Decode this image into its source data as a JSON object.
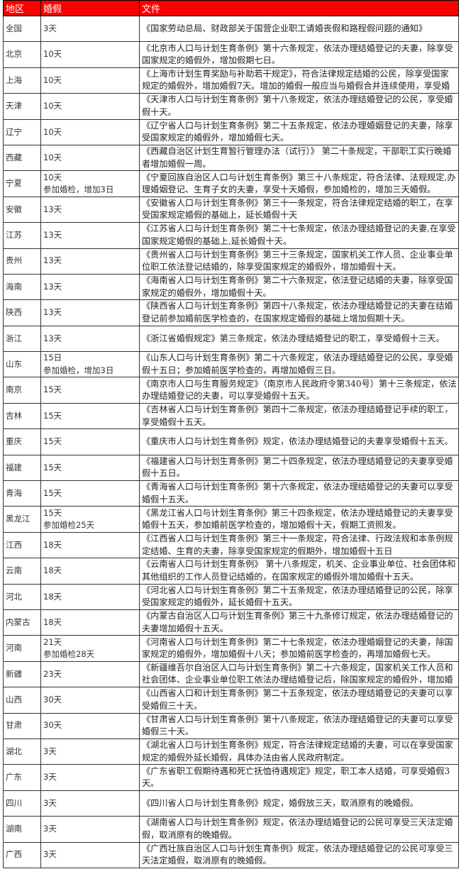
{
  "header": {
    "region": "地区",
    "leave": "婚假",
    "document": "文件",
    "bg_color": "#ff0000"
  },
  "rows": [
    {
      "region": "全国",
      "leave": "3天",
      "document": "《国家劳动总局、财政部关于国营企业职工请婚丧假和路程假问题的通知》"
    },
    {
      "region": "北京",
      "leave": "10天",
      "document": "《北京市人口与计划生育条例》第十六条规定，依法办理结婚登记的夫妻，除享受国家规定的婚假外，增加假期七日。"
    },
    {
      "region": "上海",
      "leave": "10天",
      "document": "《上海市计划生育奖励与补助若干规定》，符合法律规定结婚的公民，除享受国家规定的婚假外，增加婚假7天。增加的婚假一般应当与婚假合并连续使用，享受婚"
    },
    {
      "region": "天津",
      "leave": "10天",
      "document": "《天津市人口与计划生育条例》第十八条规定，依法办理结婚登记的公民，享受婚假十天。"
    },
    {
      "region": "辽宁",
      "leave": "10天",
      "document": "《辽宁省人口与计划生育条例》第二十五条规定，依法办理婚姻登记的夫妻，除享受国家规定的婚假外，增加婚假七天。"
    },
    {
      "region": "西藏",
      "leave": "10天",
      "document": "《西藏自治区计划生育暂行管理办法（试行）》 第二十条规定，干部职工实行晚婚者增加婚假一周。"
    },
    {
      "region": "宁夏",
      "leave": "10天",
      "leave_note": "参加婚检，增加3日",
      "document": "《宁夏回族自治区人口与计划生育条例》第三十八条规定，符合法律、法规规定,办理婚姻登记、生育子女的夫妻，享受十天婚假，参加婚检的，增加三天婚假。"
    },
    {
      "region": "安徽",
      "leave": "13天",
      "document": "《安徽省人口与计划生育条例》第三十一条规定，符合法律规定结婚的职工，在享受国家规定婚假的基础上，延长婚假十天"
    },
    {
      "region": "江苏",
      "leave": "13天",
      "document": "《江苏省人口与计划生育条例》第二十七条规定，依法办理结婚登记的夫妻,在享受国家规定婚假的基础上,延长婚假十天。"
    },
    {
      "region": "贵州",
      "leave": "13天",
      "document": "《贵州省人口与计划生育条例》第三十三条规定，国家机关工作人员、企业事业单位职工依法登记结婚的，除享受国家规定的婚假外，增加婚假十天。"
    },
    {
      "region": "海南",
      "leave": "13天",
      "document": "《海南省人口与计划生育条例》第二十六条规定，依法登记结婚的夫妻，除享受国家规定的婚假外，增加婚假十天。"
    },
    {
      "region": "陕西",
      "leave": "13天",
      "document": "《陕西省人口与计划生育条例》第四十八条规定，依法办理结婚登记的夫妻在结婚登记前参加婚前医学检查的，在国家规定婚假的基础上增加假期十天。"
    },
    {
      "region": "浙江",
      "leave": "13天",
      "document": "《浙江省婚假规定》第三条规定，依法办理结婚登记的职工，享受婚假十三天。"
    },
    {
      "region": "山东",
      "leave": "15日",
      "leave_note": "参加婚检，增加3日",
      "document": "《山东人口与计划生育条例》第二十六条规定，依法办理结婚登记的公民，享受婚假十五日；参加婚前医学检查的，再增加婚假三日。"
    },
    {
      "region": "南京",
      "leave": "15天",
      "document": "《南京市人口与生育服务规定》（南京市人民政府令第340号）第十三条规定，依法办理结婚登记的夫妻，可以享受婚假十五天。"
    },
    {
      "region": "吉林",
      "leave": "15天",
      "document": "《吉林省人口与计划生育条例》第四十二条规定，依法办理结婚登记手续的职工，享受婚假十五天。"
    },
    {
      "region": "重庆",
      "leave": "15天",
      "document": "《重庆市人口与计划生育条例》规定，依法办理结婚登记的夫妻享受婚假十五天。"
    },
    {
      "region": "福建",
      "leave": "15天",
      "document": "《福建省人口与计划生育条例》第二十四条规定，依法办理结婚登记的夫妻享受婚假十五日。"
    },
    {
      "region": "青海",
      "leave": "15天",
      "document": "《青海省人口与计划生育条例》第十六条规定，依法办理结婚登记的夫妻可以享受婚假十五天。"
    },
    {
      "region": "黑龙江",
      "leave": "15天",
      "leave_note": "参加婚检25天",
      "document": "《黑龙江省人口与计划生育条例》第三十四条规定，依法办理结婚登记的夫妻享受婚假十五天，参加婚前医学检查的，增加婚假十天，假期工资照发。"
    },
    {
      "region": "江西",
      "leave": "18天",
      "document": "《江西省人口与计划生育条例》第三十一条规定，符合法律、行政法规和本条例规定结婚、生育的夫妻，除享受国家规定的假期外，增加婚假十五日"
    },
    {
      "region": "云南",
      "leave": "18天",
      "document": "《云南省人口与计划生育条例》 第十八条规定，机关、企业事业单位、社会团体和其他组织的工作人员登记结婚的，在国家规定的婚假外增加婚假十五天。"
    },
    {
      "region": "河北",
      "leave": "18天",
      "document": "《河北省人口与计划生育条例》第二十五条规定，依法办理结婚登记的公民，除享受国家规定的婚假外，延长婚假十五天。"
    },
    {
      "region": "内蒙古",
      "leave": "18天",
      "document": "《内蒙古自治区人口与计划生育条例》第三十九条修订规定，依法办理结婚登记的夫妻增加婚假十五天。"
    },
    {
      "region": "河南",
      "leave": "21天",
      "leave_note": "参加婚检28天",
      "document": "《河南省人口与计划生育条例》第二十七条规定，依法办理婚姻登记的夫妻，除国家规定的婚假外，增加婚假十八天；参加婚前医学检查的，再增加婚假七天。"
    },
    {
      "region": "新疆",
      "leave": "23天",
      "document": "《新疆维吾尔自治区人口与计划生育条例》第二十六条规定，国家机关工作人员和社会团体、企业事业单位职工依法办理结婚登记后，除国家规定的婚假外，增加婚"
    },
    {
      "region": "山西",
      "leave": "30天",
      "document": "《山西省人口和计划生育条例》第二十五条规定，依法办理结婚登记的夫妻可以享受婚假三十天。"
    },
    {
      "region": "甘肃",
      "leave": "30天",
      "document": "《甘肃省人口与计划生育条例》第十八条规定，依法办理结婚登记的夫妻可以享受婚假三十天。"
    },
    {
      "region": "湖北",
      "leave": "3天",
      "document": "《湖北省人口与计划生育条例》规定，符合法律规定结婚的夫妻，可以在享受国家规定的婚假外延长婚假，具体办法由省人民政府制定。"
    },
    {
      "region": "广东",
      "leave": "3天",
      "document": "《广东省职工假期待遇和死亡抚恤待遇规定》规定，职工本人结婚，可享受婚假3天。"
    },
    {
      "region": "四川",
      "leave": "3天",
      "document": "《四川省人口与计划生育条例》规定，婚假放三天，取消原有的晚婚假。"
    },
    {
      "region": "湖南",
      "leave": "3天",
      "document": "《湖南省人口与计划生育条例》规定，依法办理结婚登记的公民可享受三天法定婚假，取消原有的晚婚假。"
    },
    {
      "region": "广西",
      "leave": "3天",
      "document": "《广西壮族自治区人口与计划生育条例》规定，依法办理结婚登记的公民可享受三天法定婚假，取消原有的晚婚假。"
    }
  ]
}
